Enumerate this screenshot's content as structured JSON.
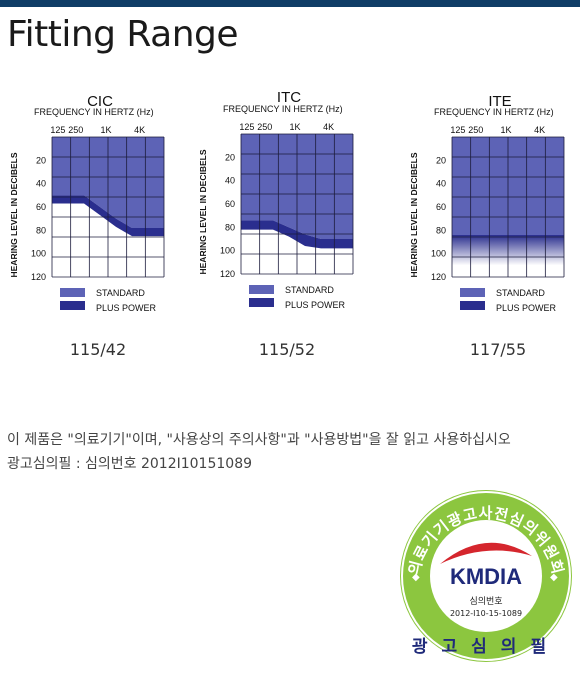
{
  "page": {
    "title": "Fitting Range",
    "colors": {
      "topbar": "#0f3d66",
      "standard": "#5d63b6",
      "plus_power": "#2a2e8e",
      "seal_green": "#8cc63f",
      "seal_navy": "#1f2a7a",
      "seal_red": "#d5262d"
    }
  },
  "chart_data": [
    {
      "type": "area",
      "title": "CIC",
      "xlabel": "FREQUENCY IN HERTZ (Hz)",
      "ylabel": "HEARING LEVEL IN DECIBELS",
      "x_ticks": [
        "125",
        "250",
        "1K",
        "4K"
      ],
      "y_ticks": [
        20,
        40,
        60,
        80,
        100,
        120
      ],
      "ylim": [
        0,
        120
      ],
      "legend": [
        "STANDARD",
        "PLUS POWER"
      ],
      "model_code": "115/42",
      "standard_limit": [
        50,
        50,
        50,
        60,
        70,
        78,
        78,
        78
      ],
      "plus_power_limit": [
        57,
        57,
        57,
        67,
        77,
        85,
        85,
        85
      ]
    },
    {
      "type": "area",
      "title": "ITC",
      "xlabel": "FREQUENCY IN HERTZ (Hz)",
      "ylabel": "HEARING LEVEL IN DECIBELS",
      "x_ticks": [
        "125",
        "250",
        "1K",
        "4K"
      ],
      "y_ticks": [
        20,
        40,
        60,
        80,
        100,
        120
      ],
      "ylim": [
        0,
        120
      ],
      "legend": [
        "STANDARD",
        "PLUS POWER"
      ],
      "model_code": "115/52",
      "standard_limit": [
        74,
        74,
        74,
        80,
        86,
        90,
        90,
        90
      ],
      "plus_power_limit": [
        82,
        82,
        82,
        88,
        96,
        98,
        98,
        98
      ]
    },
    {
      "type": "area",
      "title": "ITE",
      "xlabel": "FREQUENCY IN HERTZ (Hz)",
      "ylabel": "HEARING LEVEL IN DECIBELS",
      "x_ticks": [
        "125",
        "250",
        "1K",
        "4K"
      ],
      "y_ticks": [
        20,
        40,
        60,
        80,
        100,
        120
      ],
      "ylim": [
        0,
        120
      ],
      "legend": [
        "STANDARD",
        "PLUS POWER"
      ],
      "model_code": "117/55",
      "standard_limit": [
        84,
        84,
        84,
        84,
        84,
        84,
        84,
        84
      ],
      "plus_power_limit": [
        110,
        110,
        110,
        110,
        110,
        110,
        110,
        110
      ]
    }
  ],
  "notice": {
    "line1": "이 제품은 \"의료기기\"이며, \"사용상의 주의사항\"과 \"사용방법\"을 잘 읽고 사용하십시오",
    "line2": "광고심의필 : 심의번호 2012I10151089"
  },
  "seal": {
    "ring_text": "의료기기광고사전심의위원회",
    "logo": "KMDIA",
    "sub_label": "심의번호",
    "number": "2012-I10-15-1089",
    "bottom_text": "광고심의필"
  }
}
